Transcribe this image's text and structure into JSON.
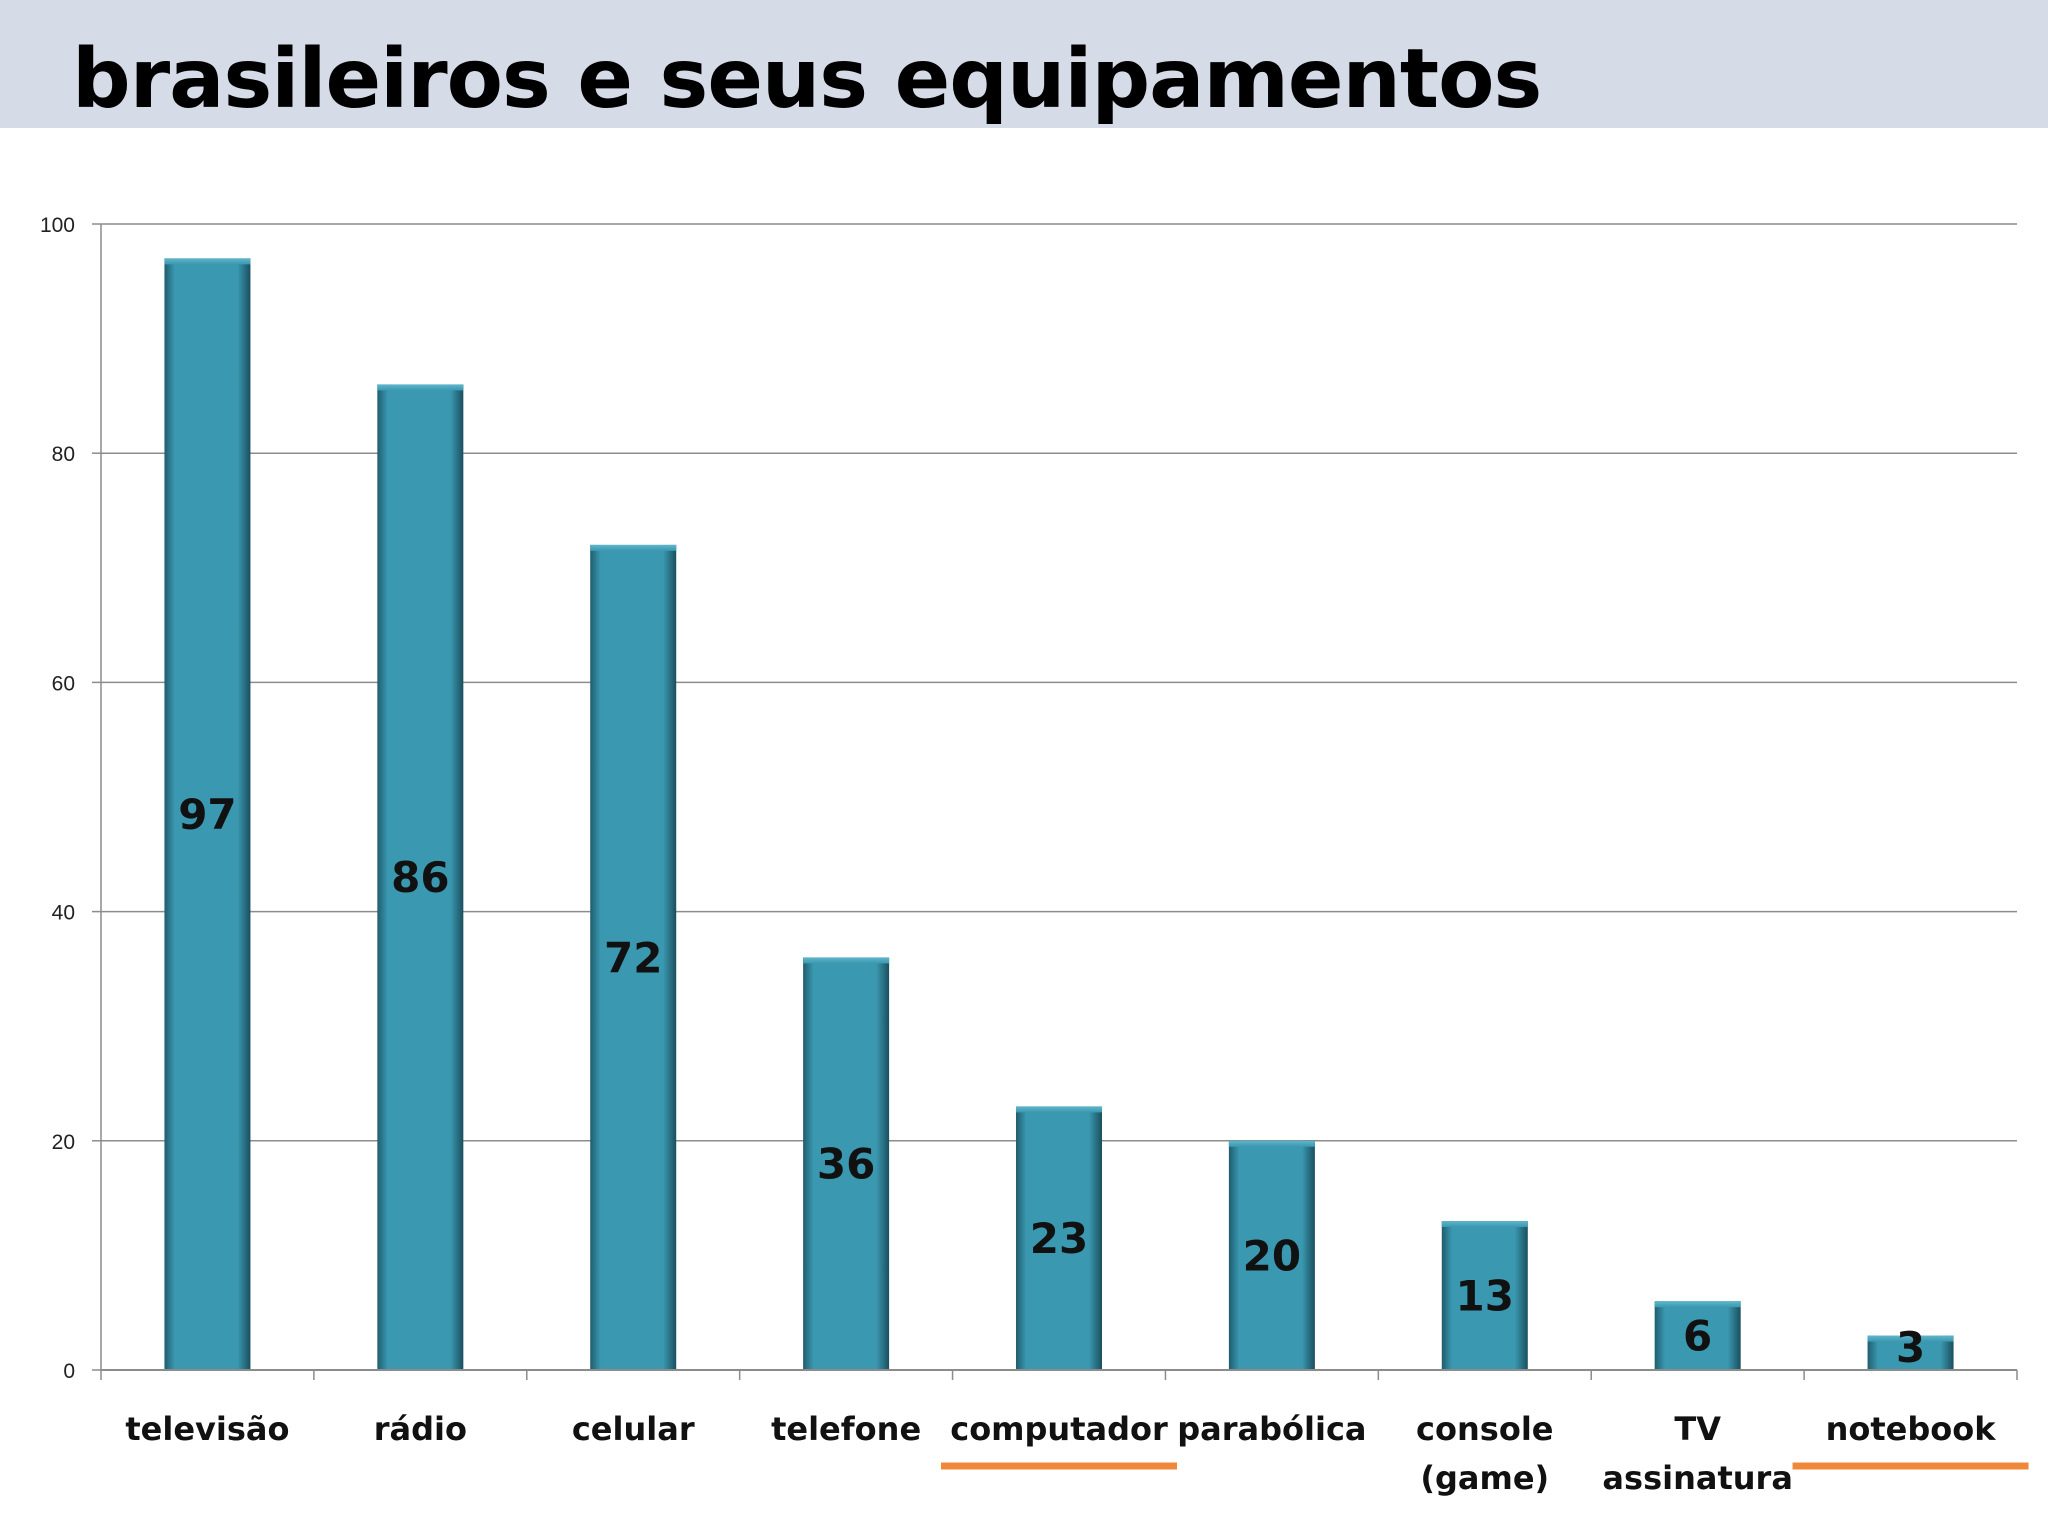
{
  "page": {
    "title": "brasileiros e seus equipamentos"
  },
  "colors": {
    "bar": "#3a98b0",
    "bar_dark": "#1f5d6e",
    "grid": "#8c8c8c",
    "underline": "#f0883a",
    "title_band": "#d6dbe8"
  },
  "chart_data": {
    "type": "bar",
    "categories": [
      "televisão",
      "rádio",
      "celular",
      "telefone",
      "computador",
      "parabólica",
      "console\n(game)",
      "TV\nassinatura",
      "notebook"
    ],
    "values": [
      97,
      86,
      72,
      36,
      23,
      20,
      13,
      6,
      3
    ],
    "title": "",
    "xlabel": "",
    "ylabel": "",
    "ylim": [
      0,
      100
    ],
    "yticks": [
      0,
      20,
      40,
      60,
      80,
      100
    ],
    "grid": true,
    "legend": "none",
    "data_labels": true,
    "underlined_categories": [
      "computador",
      "notebook"
    ]
  }
}
